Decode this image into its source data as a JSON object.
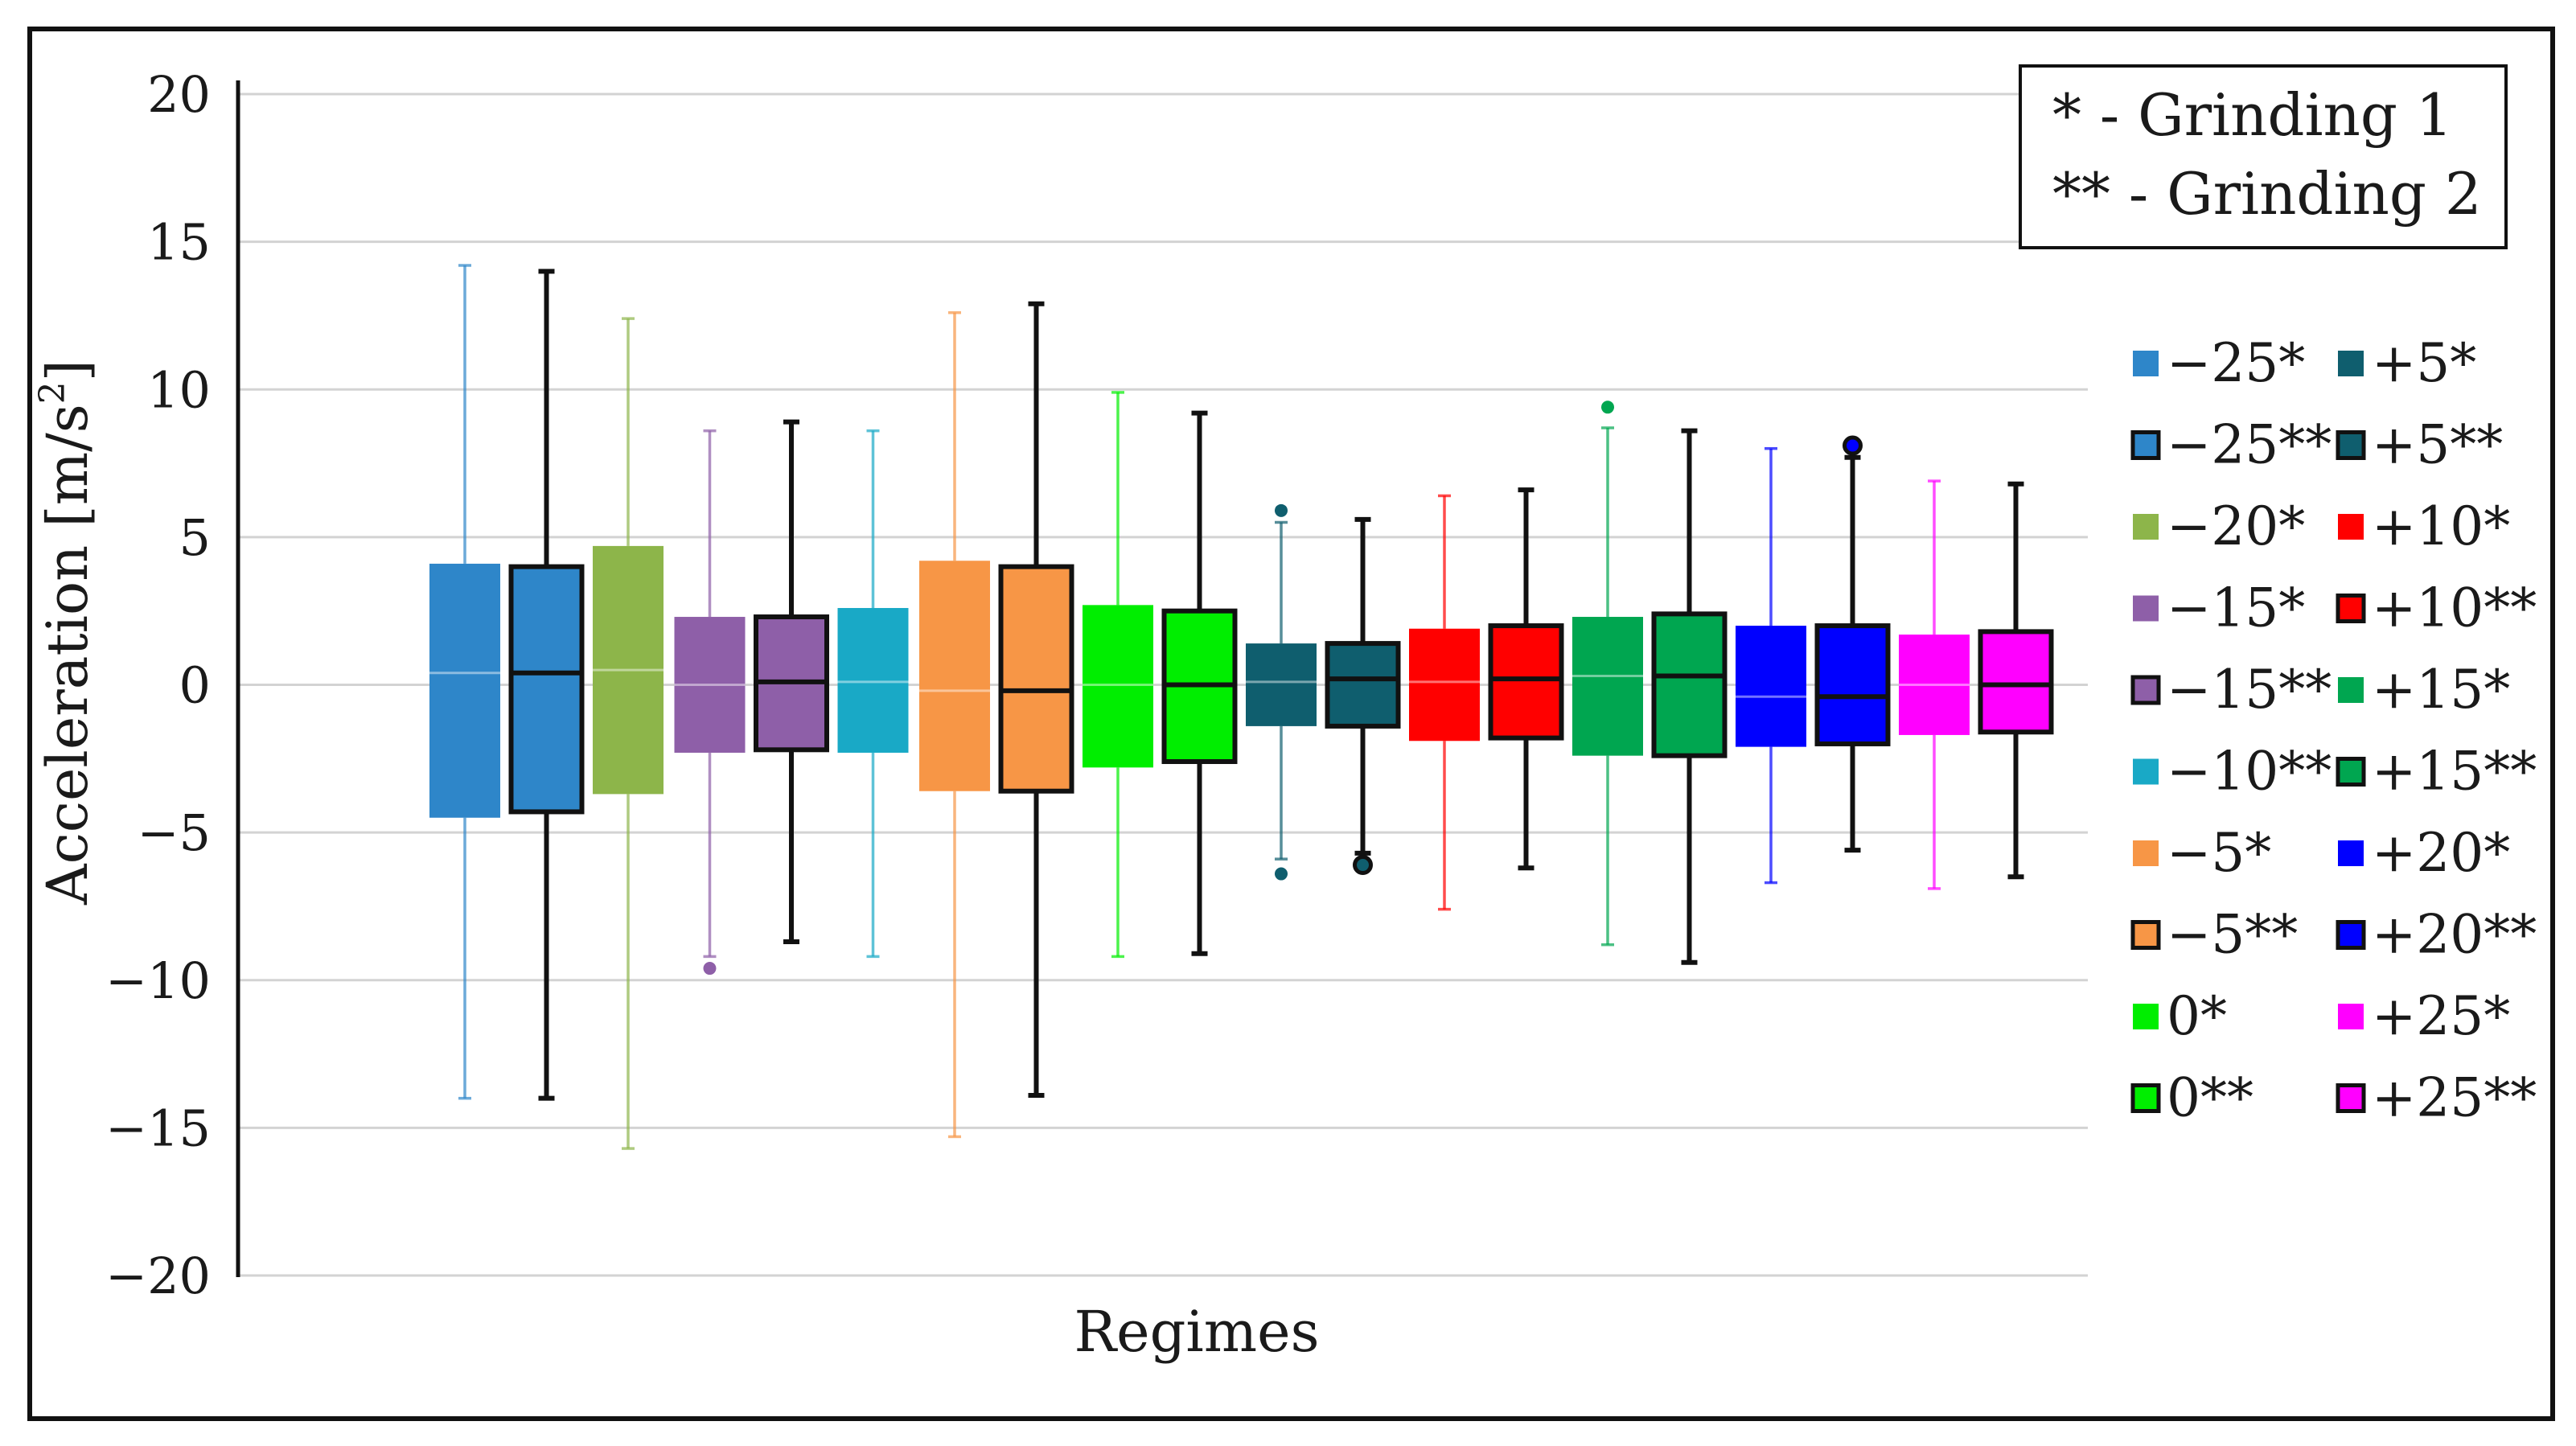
{
  "chart_data": {
    "type": "box",
    "title": "",
    "xlabel": "Regimes",
    "ylabel": "Acceleration [m/s²]",
    "ylabel_main": "Acceleration [m/s",
    "ylabel_sup": "2",
    "ylabel_close": "]",
    "ylim": [
      -20,
      20
    ],
    "yticks": [
      20,
      15,
      10,
      5,
      0,
      -5,
      -10,
      -15,
      -20
    ],
    "ytick_labels": [
      "20",
      "15",
      "10",
      "5",
      "0",
      "−5",
      "−10",
      "−15",
      "−20"
    ],
    "note_lines": [
      "* - Grinding 1",
      "** - Grinding 2"
    ],
    "series": [
      {
        "name": "−25*",
        "color": "#2e86c9",
        "outlined": false,
        "whisker_low": -14.0,
        "q1": -4.5,
        "median": 0.4,
        "q3": 4.1,
        "whisker_high": 14.2,
        "outliers": []
      },
      {
        "name": "−25**",
        "color": "#2e86c9",
        "outlined": true,
        "whisker_low": -14.0,
        "q1": -4.3,
        "median": 0.4,
        "q3": 4.0,
        "whisker_high": 14.0,
        "outliers": []
      },
      {
        "name": "−20*",
        "color": "#8db54a",
        "outlined": false,
        "whisker_low": -15.7,
        "q1": -3.7,
        "median": 0.5,
        "q3": 4.7,
        "whisker_high": 12.4,
        "outliers": []
      },
      {
        "name": "−15*",
        "color": "#8e5fa8",
        "outlined": false,
        "whisker_low": -9.2,
        "q1": -2.3,
        "median": 0.0,
        "q3": 2.3,
        "whisker_high": 8.6,
        "outliers": [
          -9.6
        ]
      },
      {
        "name": "−15**",
        "color": "#8e5fa8",
        "outlined": true,
        "whisker_low": -8.7,
        "q1": -2.2,
        "median": 0.1,
        "q3": 2.3,
        "whisker_high": 8.9,
        "outliers": []
      },
      {
        "name": "−10**",
        "color": "#19a9c6",
        "outlined": false,
        "whisker_low": -9.2,
        "q1": -2.3,
        "median": 0.1,
        "q3": 2.6,
        "whisker_high": 8.6,
        "outliers": []
      },
      {
        "name": "−5*",
        "color": "#f79646",
        "outlined": false,
        "whisker_low": -15.3,
        "q1": -3.6,
        "median": -0.2,
        "q3": 4.2,
        "whisker_high": 12.6,
        "outliers": []
      },
      {
        "name": "−5**",
        "color": "#f79646",
        "outlined": true,
        "whisker_low": -13.9,
        "q1": -3.6,
        "median": -0.2,
        "q3": 4.0,
        "whisker_high": 12.9,
        "outliers": []
      },
      {
        "name": "0*",
        "color": "#00ee00",
        "outlined": false,
        "whisker_low": -9.2,
        "q1": -2.8,
        "median": 0.0,
        "q3": 2.7,
        "whisker_high": 9.9,
        "outliers": []
      },
      {
        "name": "0**",
        "color": "#00ee00",
        "outlined": true,
        "whisker_low": -9.1,
        "q1": -2.6,
        "median": 0.0,
        "q3": 2.5,
        "whisker_high": 9.2,
        "outliers": []
      },
      {
        "name": "+5*",
        "color": "#0f5e6e",
        "outlined": false,
        "whisker_low": -5.9,
        "q1": -1.4,
        "median": 0.1,
        "q3": 1.4,
        "whisker_high": 5.5,
        "outliers": [
          5.9,
          -6.4
        ]
      },
      {
        "name": "+5**",
        "color": "#0f5e6e",
        "outlined": true,
        "whisker_low": -5.7,
        "q1": -1.4,
        "median": 0.2,
        "q3": 1.4,
        "whisker_high": 5.6,
        "outliers": [
          -6.1
        ]
      },
      {
        "name": "+10*",
        "color": "#ff0000",
        "outlined": false,
        "whisker_low": -7.6,
        "q1": -1.9,
        "median": 0.1,
        "q3": 1.9,
        "whisker_high": 6.4,
        "outliers": []
      },
      {
        "name": "+10**",
        "color": "#ff0000",
        "outlined": true,
        "whisker_low": -6.2,
        "q1": -1.8,
        "median": 0.2,
        "q3": 2.0,
        "whisker_high": 6.6,
        "outliers": []
      },
      {
        "name": "+15*",
        "color": "#00a650",
        "outlined": false,
        "whisker_low": -8.8,
        "q1": -2.4,
        "median": 0.3,
        "q3": 2.3,
        "whisker_high": 8.7,
        "outliers": [
          9.4
        ]
      },
      {
        "name": "+15**",
        "color": "#00a650",
        "outlined": true,
        "whisker_low": -9.4,
        "q1": -2.4,
        "median": 0.3,
        "q3": 2.4,
        "whisker_high": 8.6,
        "outliers": []
      },
      {
        "name": "+20*",
        "color": "#0000ff",
        "outlined": false,
        "whisker_low": -6.7,
        "q1": -2.1,
        "median": -0.4,
        "q3": 2.0,
        "whisker_high": 8.0,
        "outliers": []
      },
      {
        "name": "+20**",
        "color": "#0000ff",
        "outlined": true,
        "whisker_low": -5.6,
        "q1": -2.0,
        "median": -0.4,
        "q3": 2.0,
        "whisker_high": 7.7,
        "outliers": [
          8.1
        ]
      },
      {
        "name": "+25*",
        "color": "#ff00ff",
        "outlined": false,
        "whisker_low": -6.9,
        "q1": -1.7,
        "median": 0.0,
        "q3": 1.7,
        "whisker_high": 6.9,
        "outliers": []
      },
      {
        "name": "+25**",
        "color": "#ff00ff",
        "outlined": true,
        "whisker_low": -6.5,
        "q1": -1.6,
        "median": 0.0,
        "q3": 1.8,
        "whisker_high": 6.8,
        "outliers": []
      }
    ],
    "legend_placement": "right",
    "note_placement": "top-right",
    "grid": true
  }
}
